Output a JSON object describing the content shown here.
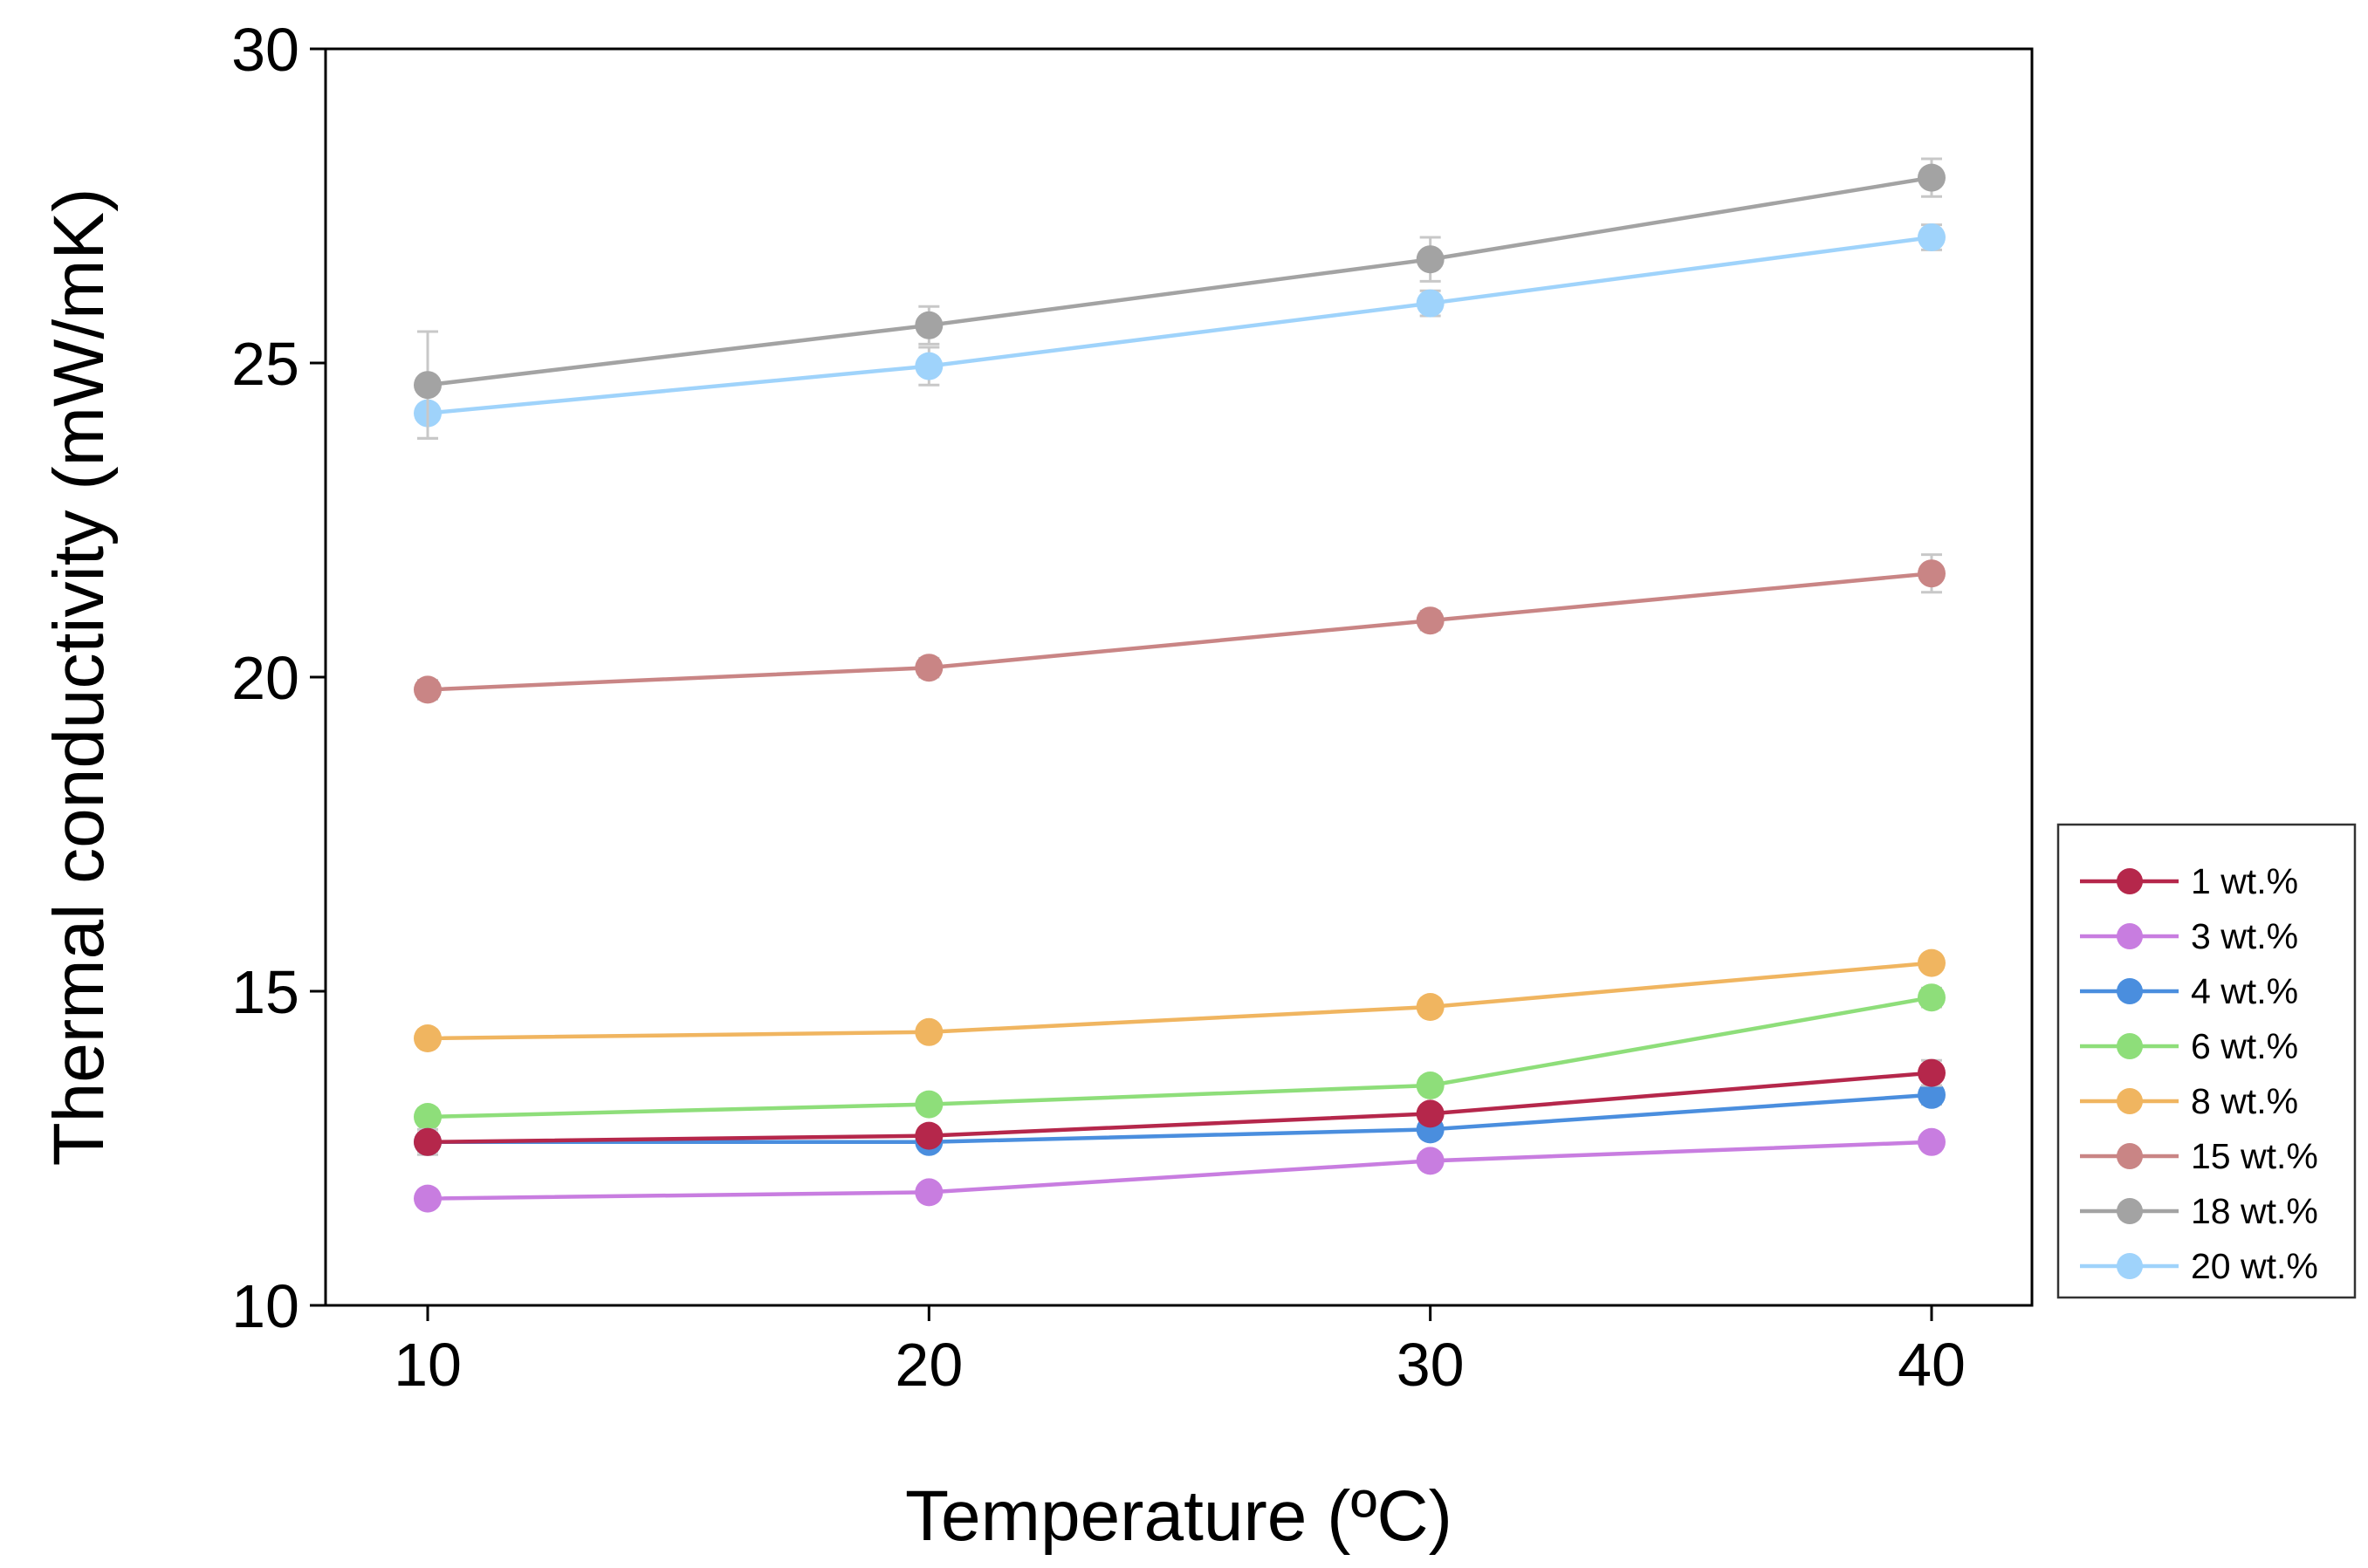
{
  "chart_data": {
    "type": "line",
    "title": "",
    "xlabel": "Temperature (ºC)",
    "ylabel": "Thermal conductivity (mW/mK)",
    "x": [
      10,
      20,
      30,
      40
    ],
    "x_ticks": [
      10,
      20,
      30,
      40
    ],
    "y_ticks": [
      10,
      15,
      20,
      25,
      30
    ],
    "xlim": [
      8,
      42
    ],
    "ylim": [
      10,
      30
    ],
    "grid": false,
    "legend_position": "right",
    "series": [
      {
        "name": "1 wt.%",
        "color": "#b5274b",
        "values": [
          12.6,
          12.7,
          13.05,
          13.7
        ],
        "errors": [
          0.15,
          0.12,
          0.12,
          0.2
        ]
      },
      {
        "name": "3 wt.%",
        "color": "#c87de0",
        "values": [
          11.7,
          11.8,
          12.3,
          12.6
        ],
        "errors": [
          0.1,
          0.1,
          0.12,
          0.12
        ]
      },
      {
        "name": "4 wt.%",
        "color": "#4a8ede",
        "values": [
          12.6,
          12.6,
          12.8,
          13.35
        ],
        "errors": [
          0.2,
          0.12,
          0.12,
          0.15
        ]
      },
      {
        "name": "6 wt.%",
        "color": "#8ede7a",
        "values": [
          13.0,
          13.2,
          13.5,
          14.9
        ],
        "errors": [
          0.12,
          0.12,
          0.12,
          0.15
        ]
      },
      {
        "name": "8 wt.%",
        "color": "#f0b560",
        "values": [
          14.25,
          14.35,
          14.75,
          15.45
        ],
        "errors": [
          0.1,
          0.1,
          0.1,
          0.1
        ]
      },
      {
        "name": "15 wt.%",
        "color": "#c98585",
        "values": [
          19.8,
          20.15,
          20.9,
          21.65
        ],
        "errors": [
          0.15,
          0.15,
          0.15,
          0.3
        ]
      },
      {
        "name": "18 wt.%",
        "color": "#a3a3a3",
        "values": [
          24.65,
          25.6,
          26.65,
          27.95
        ],
        "errors": [
          0.85,
          0.3,
          0.35,
          0.3
        ]
      },
      {
        "name": "20 wt.%",
        "color": "#9fd3fb",
        "values": [
          24.2,
          24.95,
          25.95,
          27.0
        ],
        "errors": [
          0.4,
          0.3,
          0.2,
          0.2
        ]
      }
    ]
  }
}
